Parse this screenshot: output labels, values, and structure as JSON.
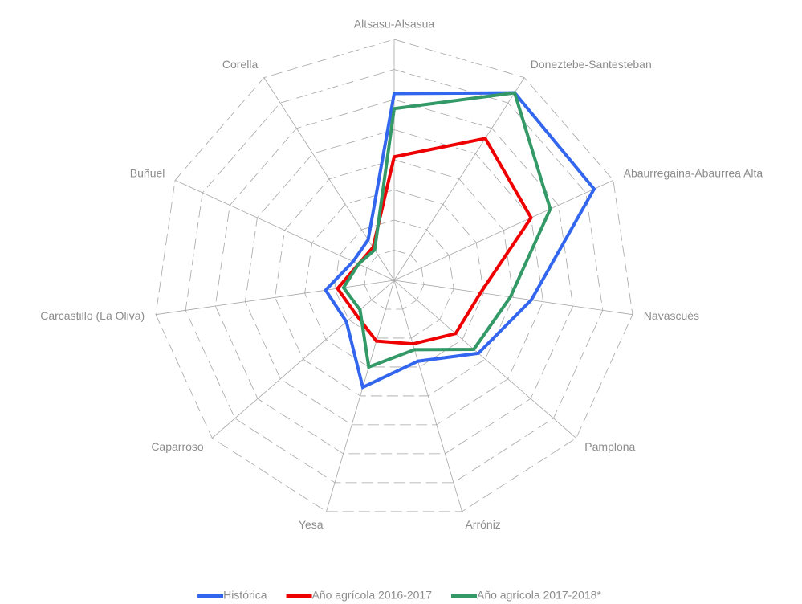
{
  "chart_data": {
    "type": "radar",
    "categories": [
      "Altsasu-Alsasua",
      "Doneztebe-Santesteban",
      "Abaurregaina-Abaurrea Alta",
      "Navascués",
      "Pamplona",
      "Arróniz",
      "Yesa",
      "Caparroso",
      "Carcastillo (La Oliva)",
      "Buñuel",
      "Corella"
    ],
    "rlim": [
      0,
      8
    ],
    "rticks": [
      1,
      2,
      3,
      4,
      5,
      6,
      7,
      8
    ],
    "grid": true,
    "legend": "bottom",
    "series": [
      {
        "name": "Histórica",
        "color": "#3366ee",
        "values": [
          6.2,
          7.4,
          7.3,
          4.6,
          3.7,
          2.8,
          3.7,
          2.1,
          2.3,
          1.5,
          1.6
        ]
      },
      {
        "name": "Año agrícola  2016-2017",
        "color": "#ee0000",
        "values": [
          4.1,
          5.6,
          5.0,
          2.9,
          2.7,
          2.2,
          2.1,
          1.7,
          1.9,
          1.3,
          1.3
        ]
      },
      {
        "name": "Año agrícola  2017-2018*",
        "color": "#339966",
        "values": [
          5.7,
          7.4,
          5.7,
          3.9,
          3.5,
          2.4,
          3.0,
          1.5,
          1.7,
          1.3,
          1.2
        ]
      }
    ]
  }
}
